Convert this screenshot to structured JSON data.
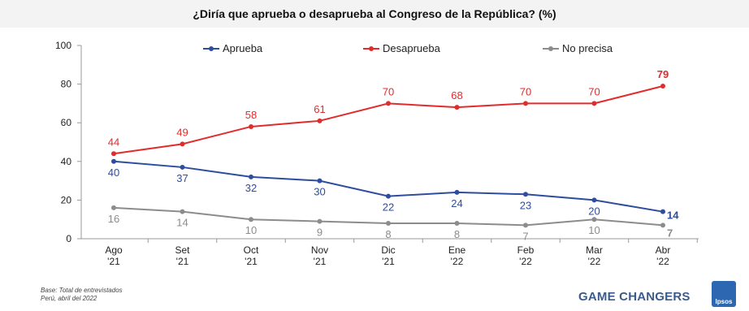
{
  "title": "¿Diría que aprueba o desaprueba al Congreso de la República? (%)",
  "footnote": {
    "line1": "Base: Total de entrevistados",
    "line2": "Perú, abril del 2022"
  },
  "brand": "GAME CHANGERS",
  "logo_text": "Ipsos",
  "chart_data": {
    "type": "line",
    "categories": [
      [
        "Ago",
        "'21"
      ],
      [
        "Set",
        "'21"
      ],
      [
        "Oct",
        "'21"
      ],
      [
        "Nov",
        "'21"
      ],
      [
        "Dic",
        "'21"
      ],
      [
        "Ene",
        "'22"
      ],
      [
        "Feb",
        "'22"
      ],
      [
        "Mar",
        "'22"
      ],
      [
        "Abr",
        "'22"
      ]
    ],
    "ylim": [
      0,
      100
    ],
    "yticks": [
      0,
      20,
      40,
      60,
      80,
      100
    ],
    "grid": false,
    "legend_position": "top",
    "series": [
      {
        "name": "Aprueba",
        "color": "#2e4d9e",
        "values": [
          40,
          37,
          32,
          30,
          22,
          24,
          23,
          20,
          14
        ],
        "label_position": "below"
      },
      {
        "name": "Desaprueba",
        "color": "#e32b2b",
        "values": [
          44,
          49,
          58,
          61,
          70,
          68,
          70,
          70,
          79
        ],
        "label_position": "above"
      },
      {
        "name": "No precisa",
        "color": "#8c8c8c",
        "values": [
          16,
          14,
          10,
          9,
          8,
          8,
          7,
          10,
          7
        ],
        "label_position": "below"
      }
    ]
  }
}
